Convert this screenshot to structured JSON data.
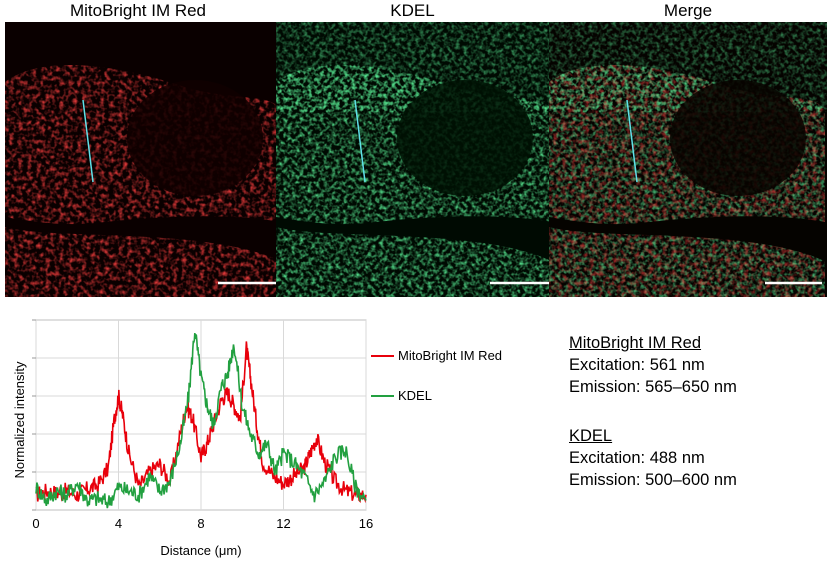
{
  "panels": {
    "red": "MitoBright IM Red",
    "green": "KDEL",
    "merge": "Merge"
  },
  "chart_data": {
    "type": "line",
    "xlabel": "Distance (μm)",
    "ylabel": "Normalized intensity",
    "x_ticks": [
      "0",
      "4",
      "8",
      "12",
      "16"
    ],
    "xlim": [
      0,
      16
    ],
    "ylim": [
      0,
      1
    ],
    "grid": true,
    "legend_position": "right",
    "series": [
      {
        "name": "MitoBright IM Red",
        "color": "#e8000b",
        "x": [
          0,
          0.5,
          1,
          1.5,
          2,
          2.5,
          3,
          3.5,
          3.8,
          4,
          4.2,
          4.5,
          5,
          5.5,
          6,
          6.5,
          7,
          7.3,
          7.6,
          8,
          8.3,
          8.6,
          9,
          9.3,
          9.6,
          9.9,
          10.2,
          10.4,
          10.7,
          11,
          11.5,
          12,
          12.5,
          13,
          13.3,
          13.6,
          14,
          14.5,
          15,
          15.5,
          16
        ],
        "y": [
          0.08,
          0.1,
          0.09,
          0.1,
          0.08,
          0.11,
          0.13,
          0.22,
          0.48,
          0.6,
          0.5,
          0.3,
          0.12,
          0.2,
          0.24,
          0.15,
          0.4,
          0.55,
          0.48,
          0.28,
          0.35,
          0.45,
          0.58,
          0.62,
          0.55,
          0.48,
          0.85,
          0.7,
          0.45,
          0.25,
          0.18,
          0.14,
          0.18,
          0.22,
          0.3,
          0.38,
          0.25,
          0.15,
          0.1,
          0.08,
          0.08
        ]
      },
      {
        "name": "KDEL",
        "color": "#22a040",
        "x": [
          0,
          0.5,
          1,
          1.5,
          2,
          2.5,
          3,
          3.5,
          4,
          4.5,
          5,
          5.5,
          6,
          6.5,
          7,
          7.4,
          7.7,
          8,
          8.3,
          8.6,
          9,
          9.3,
          9.6,
          10,
          10.4,
          10.8,
          11.2,
          11.6,
          12,
          12.5,
          13,
          13.5,
          14,
          14.5,
          15,
          15.5,
          16
        ],
        "y": [
          0.12,
          0.05,
          0.1,
          0.08,
          0.14,
          0.05,
          0.06,
          0.04,
          0.12,
          0.1,
          0.08,
          0.18,
          0.1,
          0.15,
          0.35,
          0.6,
          0.95,
          0.7,
          0.55,
          0.45,
          0.65,
          0.72,
          0.88,
          0.55,
          0.4,
          0.3,
          0.35,
          0.2,
          0.3,
          0.25,
          0.18,
          0.08,
          0.15,
          0.28,
          0.32,
          0.12,
          0.05
        ]
      }
    ]
  },
  "info": {
    "red_name": "MitoBright IM Red",
    "red_excitation": "Excitation: 561 nm",
    "red_emission": "Emission: 565–650 nm",
    "green_name": "KDEL",
    "green_excitation": "Excitation: 488 nm",
    "green_emission": "Emission: 500–600 nm"
  }
}
